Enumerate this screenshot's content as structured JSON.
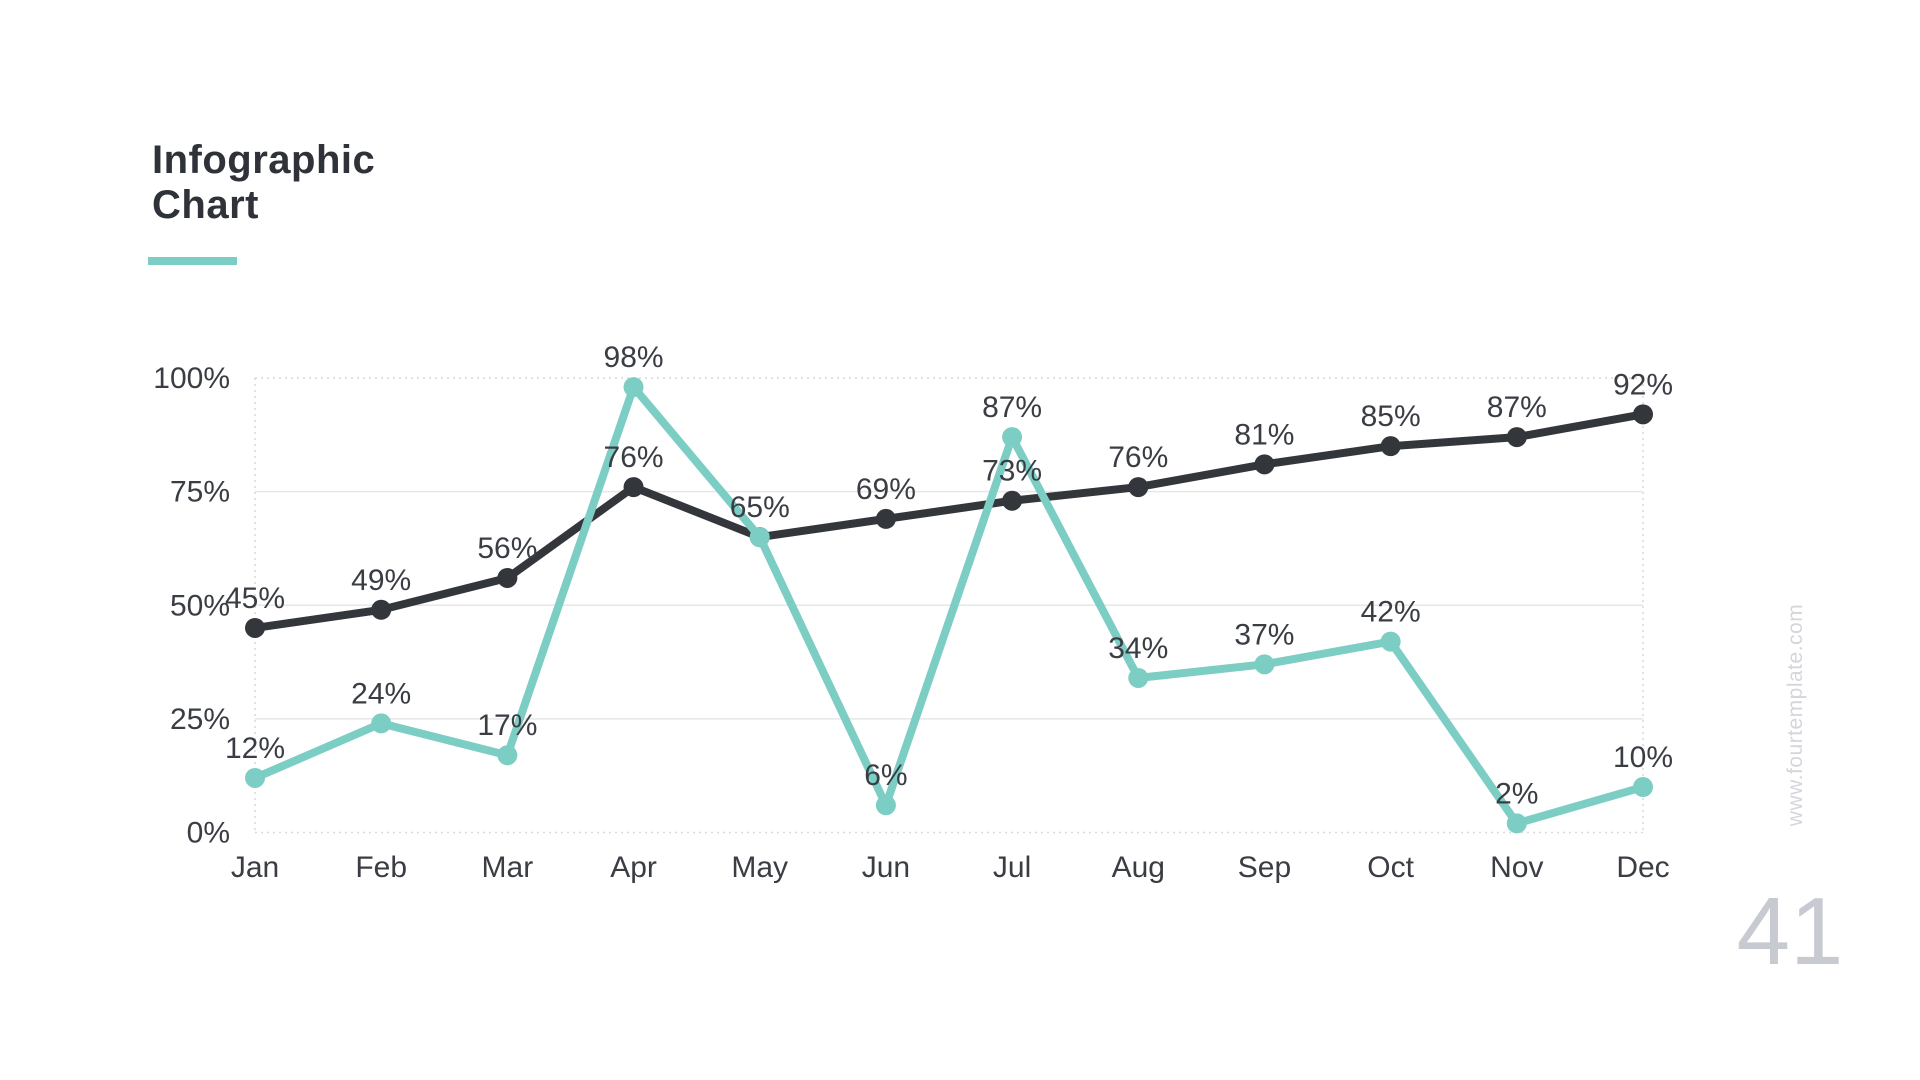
{
  "page": {
    "background_color": "#ffffff",
    "watermark": "www.fourtemplate.com",
    "watermark_color": "#d4d6db",
    "page_number": "41",
    "page_number_color": "#c7cad0"
  },
  "header": {
    "title_line1": "Infographic",
    "title_line2": "Chart",
    "title_color": "#2f3238",
    "accent_color": "#7ccdc3"
  },
  "chart_data": {
    "type": "line",
    "title": "Infographic Chart",
    "xlabel": "",
    "ylabel": "",
    "categories": [
      "Jan",
      "Feb",
      "Mar",
      "Apr",
      "May",
      "Jun",
      "Jul",
      "Aug",
      "Sep",
      "Oct",
      "Nov",
      "Dec"
    ],
    "series": [
      {
        "name": "dark-series",
        "color": "#33363b",
        "values": [
          45,
          49,
          56,
          76,
          65,
          69,
          73,
          76,
          81,
          85,
          87,
          92
        ],
        "labels": [
          "45%",
          "49%",
          "56%",
          "76%",
          "",
          "69%",
          "73%",
          "76%",
          "81%",
          "85%",
          "87%",
          "92%"
        ]
      },
      {
        "name": "teal-series",
        "color": "#7ccdc3",
        "values": [
          12,
          24,
          17,
          98,
          65,
          6,
          87,
          34,
          37,
          42,
          2,
          10
        ],
        "labels": [
          "12%",
          "24%",
          "17%",
          "98%",
          "65%",
          "6%",
          "87%",
          "34%",
          "37%",
          "42%",
          "2%",
          "10%"
        ]
      }
    ],
    "y_axis": {
      "min": 0,
      "max": 100,
      "ticks": [
        {
          "label": "0%",
          "value": 0
        },
        {
          "label": "25%",
          "value": 25
        },
        {
          "label": "50%",
          "value": 50
        },
        {
          "label": "75%",
          "value": 75
        },
        {
          "label": "100%",
          "value": 100
        }
      ]
    },
    "grid": {
      "solid_values": [
        25,
        50,
        75
      ],
      "dotted_values": [
        0,
        100
      ],
      "solid_color": "#e7e7e7",
      "dotted_color": "#d9d9d9",
      "label_color": "#3a3d44",
      "legend": "none"
    }
  }
}
